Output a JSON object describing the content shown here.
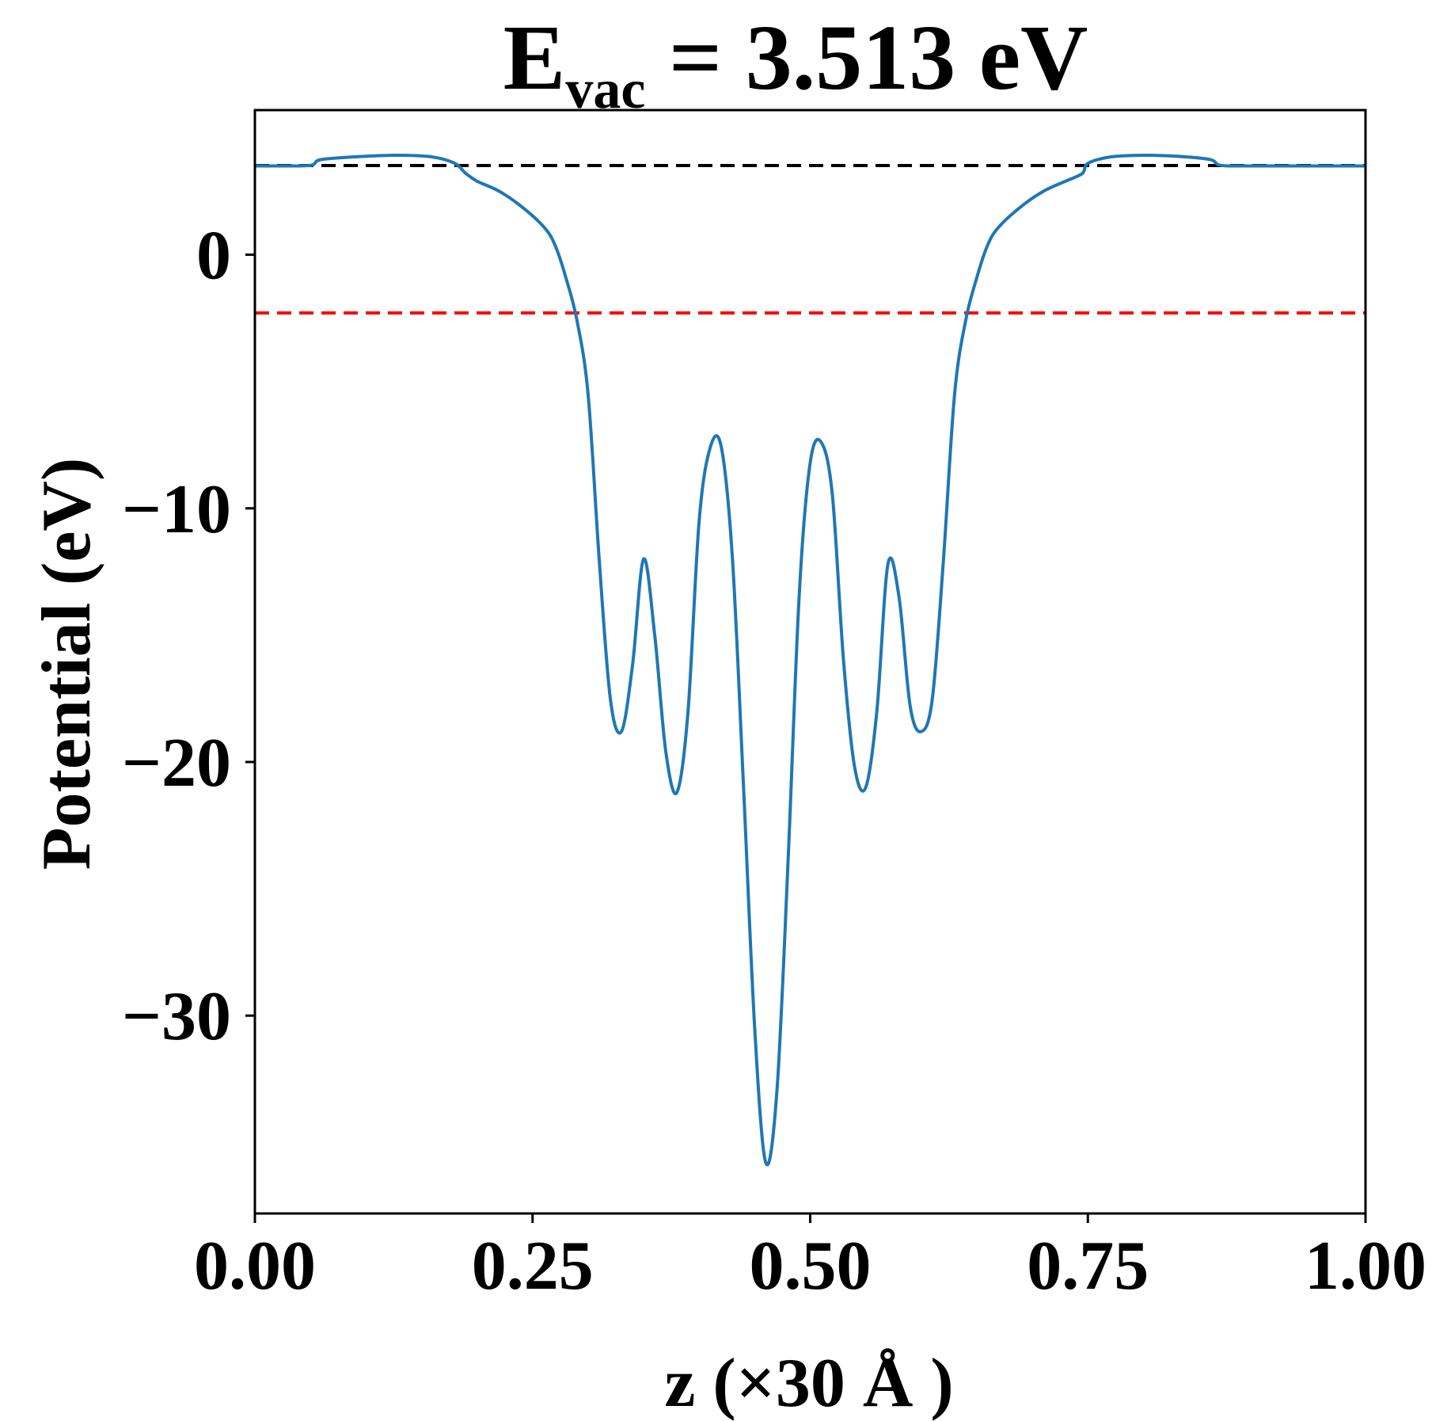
{
  "chart_data": {
    "type": "line",
    "title": {
      "symbol": "E",
      "subscript": "vac",
      "rest": " = 3.513 eV"
    },
    "xlabel": "z (×30 Å )",
    "ylabel": "Potential (eV)",
    "xlim": [
      0.0,
      1.0
    ],
    "ylim": [
      -37.8,
      5.7
    ],
    "xticks": [
      0.0,
      0.25,
      0.5,
      0.75,
      1.0
    ],
    "xtick_labels": [
      "0.00",
      "0.25",
      "0.50",
      "0.75",
      "1.00"
    ],
    "yticks": [
      0,
      -10,
      -20,
      -30
    ],
    "ytick_labels": [
      "0",
      "−10",
      "−20",
      "−30"
    ],
    "grid": false,
    "legend": "none",
    "reference_lines": [
      {
        "y": 3.513,
        "color": "#000000",
        "style": "dashed"
      },
      {
        "y": -2.3,
        "color": "#ff0000",
        "style": "dashed"
      }
    ],
    "series": [
      {
        "color": "#1f77b4",
        "points": [
          [
            0.0,
            3.5
          ],
          [
            0.02,
            3.5
          ],
          [
            0.05,
            3.52
          ],
          [
            0.06,
            3.75
          ],
          [
            0.1,
            3.88
          ],
          [
            0.13,
            3.92
          ],
          [
            0.16,
            3.85
          ],
          [
            0.18,
            3.6
          ],
          [
            0.19,
            3.2
          ],
          [
            0.2,
            2.9
          ],
          [
            0.22,
            2.5
          ],
          [
            0.24,
            1.9
          ],
          [
            0.26,
            1.1
          ],
          [
            0.27,
            0.4
          ],
          [
            0.28,
            -0.9
          ],
          [
            0.29,
            -2.6
          ],
          [
            0.3,
            -5.5
          ],
          [
            0.31,
            -12.0
          ],
          [
            0.32,
            -17.5
          ],
          [
            0.33,
            -18.8
          ],
          [
            0.34,
            -16.2
          ],
          [
            0.35,
            -12.0
          ],
          [
            0.36,
            -15.0
          ],
          [
            0.37,
            -19.6
          ],
          [
            0.38,
            -21.2
          ],
          [
            0.39,
            -18.0
          ],
          [
            0.4,
            -10.5
          ],
          [
            0.41,
            -7.6
          ],
          [
            0.42,
            -7.6
          ],
          [
            0.43,
            -12.0
          ],
          [
            0.44,
            -21.0
          ],
          [
            0.45,
            -30.5
          ],
          [
            0.46,
            -35.8
          ],
          [
            0.47,
            -33.0
          ],
          [
            0.48,
            -24.0
          ],
          [
            0.49,
            -13.5
          ],
          [
            0.5,
            -8.2
          ],
          [
            0.51,
            -7.4
          ],
          [
            0.52,
            -9.5
          ],
          [
            0.53,
            -16.0
          ],
          [
            0.54,
            -20.2
          ],
          [
            0.55,
            -21.0
          ],
          [
            0.56,
            -18.0
          ],
          [
            0.57,
            -12.2
          ],
          [
            0.58,
            -13.5
          ],
          [
            0.59,
            -17.8
          ],
          [
            0.6,
            -18.8
          ],
          [
            0.61,
            -17.5
          ],
          [
            0.62,
            -12.0
          ],
          [
            0.63,
            -5.5
          ],
          [
            0.64,
            -2.6
          ],
          [
            0.65,
            -0.9
          ],
          [
            0.66,
            0.4
          ],
          [
            0.67,
            1.1
          ],
          [
            0.69,
            1.9
          ],
          [
            0.71,
            2.5
          ],
          [
            0.73,
            2.9
          ],
          [
            0.745,
            3.2
          ],
          [
            0.75,
            3.6
          ],
          [
            0.77,
            3.85
          ],
          [
            0.8,
            3.92
          ],
          [
            0.83,
            3.88
          ],
          [
            0.86,
            3.75
          ],
          [
            0.87,
            3.52
          ],
          [
            0.9,
            3.5
          ],
          [
            1.0,
            3.5
          ]
        ]
      }
    ]
  }
}
